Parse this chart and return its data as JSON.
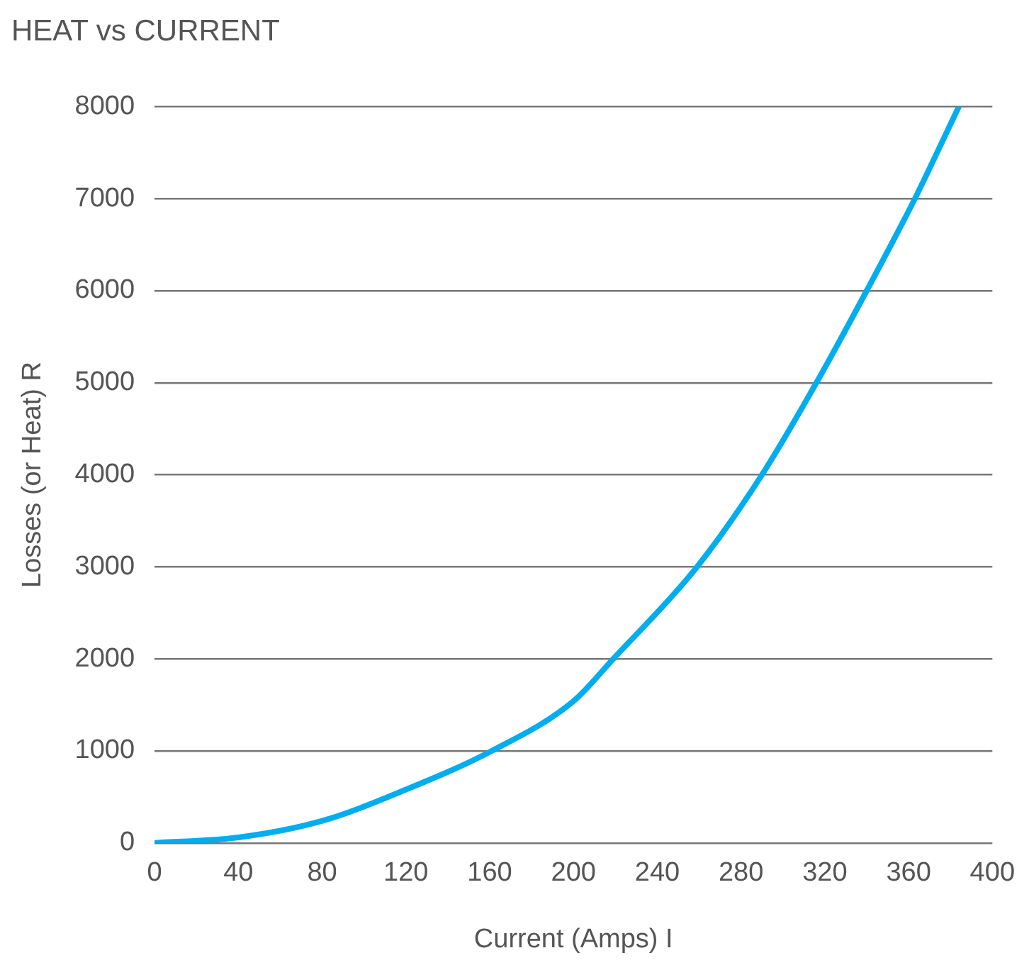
{
  "chart_data": {
    "type": "line",
    "title": "HEAT vs CURRENT",
    "xlabel": "Current (Amps) I",
    "ylabel": "Losses (or Heat) R",
    "x": [
      0,
      40,
      80,
      120,
      161,
      200,
      219,
      259,
      290,
      316,
      340,
      363,
      384
    ],
    "series": [
      {
        "color": "#00aeef",
        "values": [
          0,
          60,
          240,
          580,
          1000,
          1540,
          2000,
          3000,
          4000,
          5000,
          6000,
          7000,
          8000
        ]
      }
    ],
    "xlim": [
      0,
      400
    ],
    "xticks": [
      0,
      40,
      80,
      120,
      160,
      200,
      240,
      280,
      320,
      360,
      400
    ],
    "ylim": [
      0,
      8000
    ],
    "yticks": [
      0,
      1000,
      2000,
      3000,
      4000,
      5000,
      6000,
      7000,
      8000
    ],
    "grid": "y",
    "legend": false,
    "marker": "none",
    "line_style": "solid"
  }
}
